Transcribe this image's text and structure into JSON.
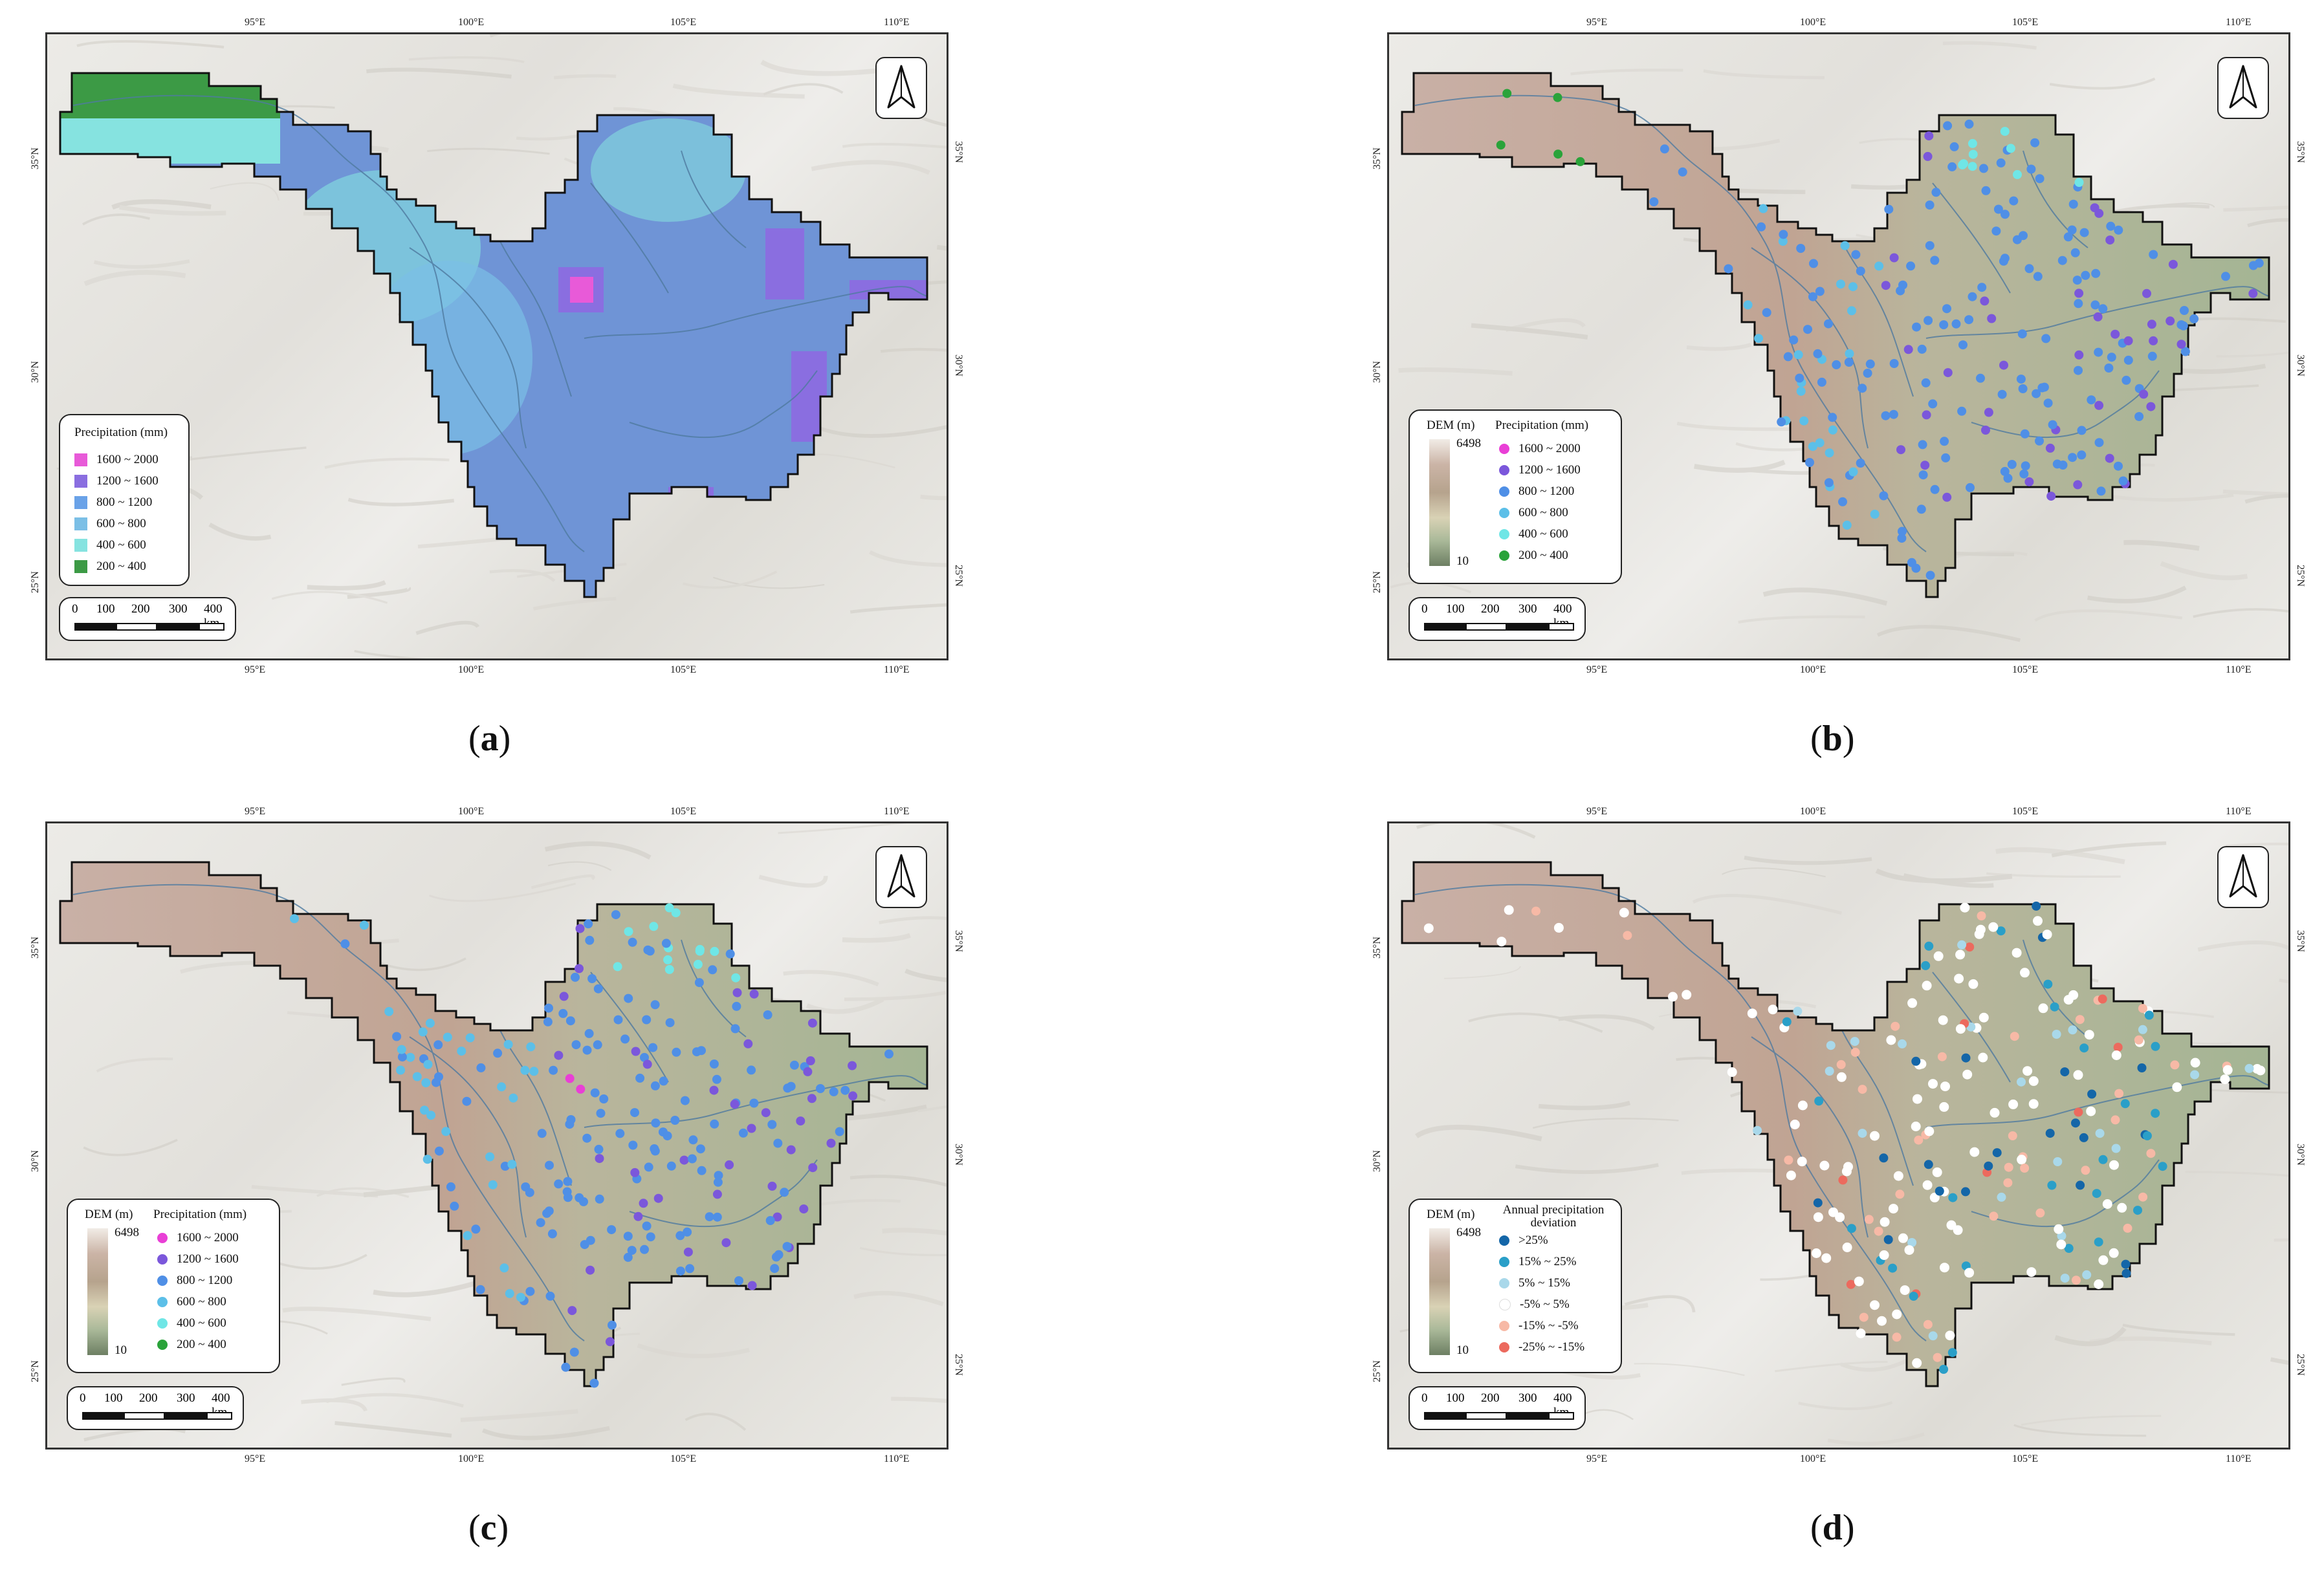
{
  "panels": [
    {
      "id": "a",
      "caption_letter": "a",
      "lon_ticks": [
        "95°E",
        "100°E",
        "105°E",
        "110°E"
      ],
      "lat_ticks": [
        "35°N",
        "30°N",
        "25°N"
      ],
      "legend_type": "grid",
      "legend_title": "Precipitation (mm)",
      "legend_items": [
        {
          "label": "1600 ~ 2000",
          "color": "#e85ad8"
        },
        {
          "label": "1200 ~ 1600",
          "color": "#8a6ee0"
        },
        {
          "label": "800 ~ 1200",
          "color": "#6aa2e8"
        },
        {
          "label": "600 ~ 800",
          "color": "#7bbfe6"
        },
        {
          "label": "400 ~ 600",
          "color": "#86e3e0"
        },
        {
          "label": "200 ~ 400",
          "color": "#3c9a45"
        }
      ]
    },
    {
      "id": "b",
      "caption_letter": "b",
      "lon_ticks": [
        "95°E",
        "100°E",
        "105°E",
        "110°E"
      ],
      "lat_ticks": [
        "35°N",
        "30°N",
        "25°N"
      ],
      "legend_type": "station",
      "dem_title": "DEM (m)",
      "dem_max": "6498",
      "dem_min": "10",
      "legend_title": "Precipitation (mm)",
      "legend_items": [
        {
          "label": "1600 ~ 2000",
          "color": "#e93fd6"
        },
        {
          "label": "1200 ~ 1600",
          "color": "#7b57db"
        },
        {
          "label": "800 ~ 1200",
          "color": "#4f8fe6"
        },
        {
          "label": "600 ~ 800",
          "color": "#5cbfe8"
        },
        {
          "label": "400 ~ 600",
          "color": "#6fe6e6"
        },
        {
          "label": "200 ~ 400",
          "color": "#2aa33a"
        }
      ]
    },
    {
      "id": "c",
      "caption_letter": "c",
      "lon_ticks": [
        "95°E",
        "100°E",
        "105°E",
        "110°E"
      ],
      "lat_ticks": [
        "35°N",
        "30°N",
        "25°N"
      ],
      "legend_type": "station",
      "dem_title": "DEM (m)",
      "dem_max": "6498",
      "dem_min": "10",
      "legend_title": "Precipitation (mm)",
      "legend_items": [
        {
          "label": "1600 ~ 2000",
          "color": "#e93fd6"
        },
        {
          "label": "1200 ~ 1600",
          "color": "#7b57db"
        },
        {
          "label": "800 ~ 1200",
          "color": "#4f8fe6"
        },
        {
          "label": "600 ~ 800",
          "color": "#5cbfe8"
        },
        {
          "label": "400 ~ 600",
          "color": "#6fe6e6"
        },
        {
          "label": "200 ~ 400",
          "color": "#2aa33a"
        }
      ]
    },
    {
      "id": "d",
      "caption_letter": "d",
      "lon_ticks": [
        "95°E",
        "100°E",
        "105°E",
        "110°E"
      ],
      "lat_ticks": [
        "35°N",
        "30°N",
        "25°N"
      ],
      "legend_type": "station",
      "dem_title": "DEM (m)",
      "dem_max": "6498",
      "dem_min": "10",
      "legend_title": "Annual precipitation deviation",
      "legend_items": [
        {
          "label": ">25%",
          "color": "#1466a8"
        },
        {
          "label": "15% ~ 25%",
          "color": "#2a9fc8"
        },
        {
          "label": "5% ~ 15%",
          "color": "#a9d8ea"
        },
        {
          "label": "-5% ~ 5%",
          "color": "#ffffff"
        },
        {
          "label": "-15% ~ -5%",
          "color": "#f7b9a6"
        },
        {
          "label": "-25% ~ -15%",
          "color": "#ec6a5e"
        }
      ]
    }
  ],
  "scale_bar": {
    "labels": [
      "0",
      "100",
      "200",
      "300",
      "400 km"
    ]
  }
}
